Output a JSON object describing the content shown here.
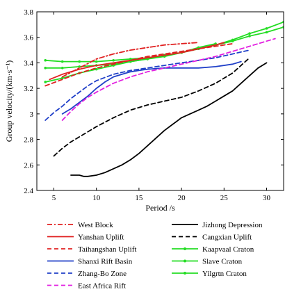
{
  "chart_data": {
    "type": "line",
    "xlabel": "Period /s",
    "ylabel": "Group velocity/(km·s⁻¹)",
    "xlim": [
      3,
      32
    ],
    "ylim": [
      2.4,
      3.8
    ],
    "xticks": [
      5,
      10,
      15,
      20,
      25,
      30
    ],
    "yticks": [
      2.4,
      2.6,
      2.8,
      3.0,
      3.2,
      3.4,
      3.6,
      3.8
    ],
    "xtick_labels": [
      "5",
      "10",
      "15",
      "20",
      "25",
      "30"
    ],
    "ytick_labels": [
      "2.4",
      "2.6",
      "2.8",
      "3",
      "3.2",
      "3.4",
      "3.6",
      "3.8"
    ],
    "grid": false,
    "legend_position": "bottom",
    "series": [
      {
        "name": "West Block",
        "color": "#e02020",
        "dash": "dashdot",
        "marker": "none",
        "x": [
          6,
          8,
          10,
          12,
          14,
          16,
          18,
          20,
          22
        ],
        "y": [
          3.29,
          3.36,
          3.43,
          3.47,
          3.5,
          3.52,
          3.54,
          3.55,
          3.56
        ]
      },
      {
        "name": "Yanshan Uplift",
        "color": "#e02020",
        "dash": "solid",
        "marker": "none",
        "x": [
          4.5,
          6,
          8,
          10,
          12,
          14,
          16,
          18,
          20,
          22,
          24,
          25
        ],
        "y": [
          3.27,
          3.31,
          3.35,
          3.38,
          3.4,
          3.42,
          3.44,
          3.46,
          3.48,
          3.51,
          3.54,
          3.56
        ]
      },
      {
        "name": "Taihangshan Uplift",
        "color": "#e02020",
        "dash": "dashed",
        "marker": "none",
        "x": [
          4,
          6,
          8,
          10,
          12,
          14,
          16,
          18,
          20,
          22,
          24,
          26
        ],
        "y": [
          3.22,
          3.27,
          3.32,
          3.36,
          3.39,
          3.42,
          3.45,
          3.47,
          3.49,
          3.51,
          3.53,
          3.55
        ]
      },
      {
        "name": "Shanxi Rift Basin",
        "color": "#1f3fc8",
        "dash": "solid",
        "marker": "none",
        "x": [
          6,
          7,
          8,
          9,
          10,
          11,
          12,
          13,
          14,
          15,
          16,
          18,
          20,
          22,
          24,
          26,
          27
        ],
        "y": [
          3.0,
          3.04,
          3.09,
          3.14,
          3.2,
          3.25,
          3.29,
          3.31,
          3.33,
          3.34,
          3.35,
          3.36,
          3.36,
          3.36,
          3.37,
          3.39,
          3.41
        ]
      },
      {
        "name": "Zhang-Bo Zone",
        "color": "#1f3fc8",
        "dash": "dashed",
        "marker": "none",
        "x": [
          4,
          5,
          6,
          7,
          8,
          9,
          10,
          12,
          14,
          16,
          18,
          20,
          22,
          24,
          26,
          28
        ],
        "y": [
          2.95,
          3.01,
          3.06,
          3.12,
          3.17,
          3.22,
          3.26,
          3.31,
          3.34,
          3.36,
          3.38,
          3.4,
          3.42,
          3.44,
          3.47,
          3.5
        ]
      },
      {
        "name": "East Africa Rift",
        "color": "#e21ee0",
        "dash": "dashed",
        "marker": "none",
        "x": [
          6,
          7,
          8,
          9,
          10,
          12,
          14,
          16,
          18,
          20,
          22,
          24,
          26,
          28,
          30,
          31
        ],
        "y": [
          2.95,
          3.02,
          3.08,
          3.13,
          3.17,
          3.24,
          3.29,
          3.33,
          3.36,
          3.39,
          3.42,
          3.45,
          3.49,
          3.53,
          3.57,
          3.59
        ]
      },
      {
        "name": "Jizhong Depression",
        "color": "#000000",
        "dash": "solid",
        "marker": "none",
        "x": [
          7,
          8,
          8.5,
          9,
          10,
          11,
          12,
          13,
          14,
          15,
          16,
          17,
          18,
          19,
          20,
          21,
          22,
          23,
          24,
          25,
          26,
          27,
          28,
          29,
          30
        ],
        "y": [
          2.52,
          2.52,
          2.51,
          2.51,
          2.52,
          2.54,
          2.57,
          2.6,
          2.64,
          2.69,
          2.75,
          2.81,
          2.87,
          2.92,
          2.97,
          3.0,
          3.03,
          3.06,
          3.1,
          3.14,
          3.18,
          3.24,
          3.3,
          3.36,
          3.4
        ]
      },
      {
        "name": "Cangxian Uplift",
        "color": "#000000",
        "dash": "dashed",
        "marker": "none",
        "x": [
          5,
          6,
          7,
          8,
          9,
          10,
          12,
          14,
          16,
          18,
          20,
          22,
          24,
          26,
          28
        ],
        "y": [
          2.67,
          2.73,
          2.78,
          2.82,
          2.86,
          2.9,
          2.97,
          3.03,
          3.07,
          3.1,
          3.13,
          3.18,
          3.24,
          3.32,
          3.44
        ]
      },
      {
        "name": "Kaapvaal Craton",
        "color": "#22dd22",
        "dash": "solid",
        "marker": "dot",
        "x": [
          4,
          6,
          8,
          10,
          12,
          14,
          16,
          18,
          20,
          22,
          24,
          26,
          28,
          30,
          32
        ],
        "y": [
          3.25,
          3.28,
          3.32,
          3.35,
          3.38,
          3.41,
          3.43,
          3.46,
          3.48,
          3.51,
          3.54,
          3.57,
          3.61,
          3.64,
          3.68
        ]
      },
      {
        "name": "Slave Craton",
        "color": "#22dd22",
        "dash": "solid",
        "marker": "dot",
        "x": [
          4,
          6,
          8,
          10,
          12,
          14,
          16,
          18,
          20,
          22,
          24,
          26,
          28,
          30,
          32
        ],
        "y": [
          3.42,
          3.41,
          3.41,
          3.41,
          3.42,
          3.43,
          3.44,
          3.46,
          3.48,
          3.51,
          3.54,
          3.58,
          3.63,
          3.67,
          3.72
        ]
      },
      {
        "name": "Yilgrtn Craton",
        "color": "#22dd22",
        "dash": "solid",
        "marker": "dot",
        "x": [
          4,
          6,
          8,
          10,
          12,
          14,
          16,
          18,
          20,
          22,
          24
        ],
        "y": [
          3.36,
          3.36,
          3.37,
          3.38,
          3.39,
          3.41,
          3.43,
          3.45,
          3.48,
          3.52,
          3.55
        ]
      }
    ],
    "legend_columns": [
      [
        "West Block",
        "Yanshan Uplift",
        "Taihangshan Uplift",
        "Shanxi Rift Basin",
        "Zhang-Bo Zone",
        "East Africa Rift"
      ],
      [
        "Jizhong Depression",
        "Cangxian Uplift",
        "Kaapvaal Craton",
        "Slave Craton",
        "Yilgrtn Craton"
      ]
    ]
  }
}
